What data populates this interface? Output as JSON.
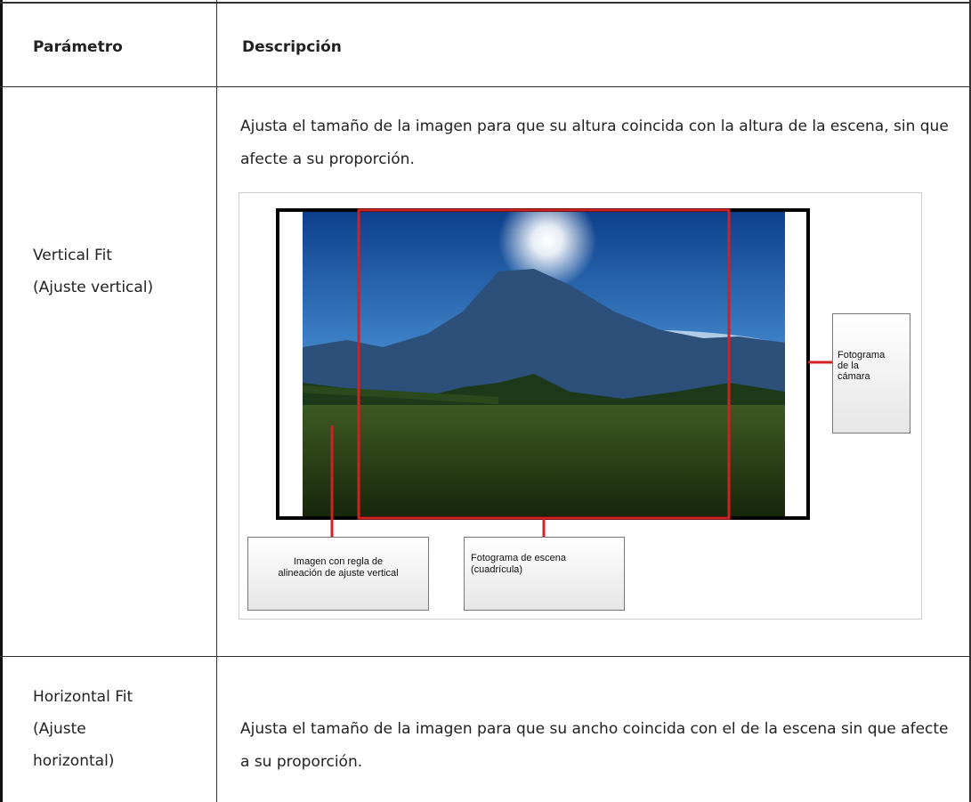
{
  "table": {
    "header": [
      "Parámetro",
      "Descripción"
    ],
    "rows": [
      {
        "parameter": [
          "Vertical Fit",
          "(Ajuste vertical)"
        ],
        "description": "Ajusta el tamaño de la imagen para que su altura coincida con la altura de la escena, sin que afecte a su proporción.",
        "figure": {
          "labels": [
            [
              "Imagen con regla de",
              "alineación de ajuste vertical"
            ],
            [
              "Fotograma de escena",
              "(cuadrícula)"
            ],
            [
              "Fotograma",
              "de la",
              "cámara"
            ]
          ]
        }
      },
      {
        "parameter": [
          "Horizontal Fit",
          "(Ajuste",
          "horizontal)"
        ],
        "description": "Ajusta el tamaño de la imagen para que su ancho coincida con el de la escena sin que afecte a su proporción."
      }
    ]
  }
}
